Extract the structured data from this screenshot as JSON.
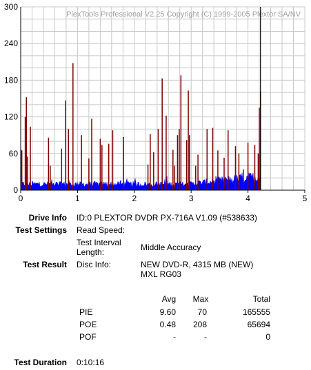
{
  "chart_data": {
    "type": "bar",
    "title": "PlexTools Professional V2.25 Copyright (C) 1999-2005 Plextor SA/NV",
    "xlim": [
      0,
      5
    ],
    "ylim": [
      0,
      300
    ],
    "x_ticks": [
      "0",
      "1",
      "2",
      "3",
      "4",
      "5"
    ],
    "y_ticks": [
      "0",
      "60",
      "120",
      "180",
      "240",
      "300"
    ],
    "grid": true,
    "test_end_x": 4.22,
    "marker_x": 4.22,
    "series": [
      {
        "name": "",
        "color": "#0000ff",
        "type": "dense-fill",
        "base_level": 10,
        "end_level": 22
      },
      {
        "name": "",
        "color": "#800000",
        "type": "spikes",
        "x": [
          0.02,
          0.08,
          0.1,
          0.12,
          0.17,
          0.49,
          0.52,
          0.72,
          0.79,
          0.84,
          0.92,
          1.07,
          1.2,
          1.25,
          1.4,
          1.43,
          1.55,
          1.62,
          1.81,
          2.24,
          2.28,
          2.34,
          2.42,
          2.49,
          2.56,
          2.68,
          2.71,
          2.76,
          2.79,
          2.82,
          2.92,
          2.95,
          2.97,
          3.08,
          3.12,
          3.28,
          3.38,
          3.47,
          3.58,
          3.65,
          3.78,
          3.84,
          3.92,
          4.0,
          4.12,
          4.18,
          4.2,
          4.22
        ],
        "values": [
          65,
          120,
          152,
          55,
          104,
          86,
          40,
          68,
          147,
          100,
          208,
          90,
          52,
          117,
          84,
          74,
          76,
          98,
          87,
          42,
          92,
          62,
          100,
          183,
          122,
          66,
          40,
          90,
          100,
          188,
          82,
          163,
          90,
          40,
          58,
          100,
          102,
          65,
          53,
          98,
          72,
          60,
          34,
          78,
          74,
          60,
          135,
          162
        ]
      }
    ]
  },
  "info": {
    "drive_info_label": "Drive Info",
    "drive_info_value": "ID:0 PLEXTOR DVDR PX-716A V1.09 (#538633)",
    "test_settings_label": "Test Settings",
    "read_speed_label": "Read Speed:",
    "read_speed_value": "",
    "interval_label_line1": "Test Interval",
    "interval_label_line2": "Length:",
    "interval_value": "Middle Accuracy",
    "test_result_label": "Test Result",
    "disc_info_label": "Disc Info:",
    "disc_info_line1": "NEW DVD-R, 4315 MB (NEW)",
    "disc_info_line2": "MXL RG03",
    "test_duration_label": "Test Duration",
    "test_duration_value": "0:10:16"
  },
  "results": {
    "headers": {
      "avg": "Avg",
      "max": "Max",
      "total": "Total"
    },
    "rows": [
      {
        "name": "PIE",
        "avg": "9.60",
        "max": "70",
        "total": "165555"
      },
      {
        "name": "POE",
        "avg": "0.48",
        "max": "208",
        "total": "65694"
      },
      {
        "name": "POF",
        "avg": "-",
        "max": "-",
        "total": "0"
      }
    ]
  }
}
